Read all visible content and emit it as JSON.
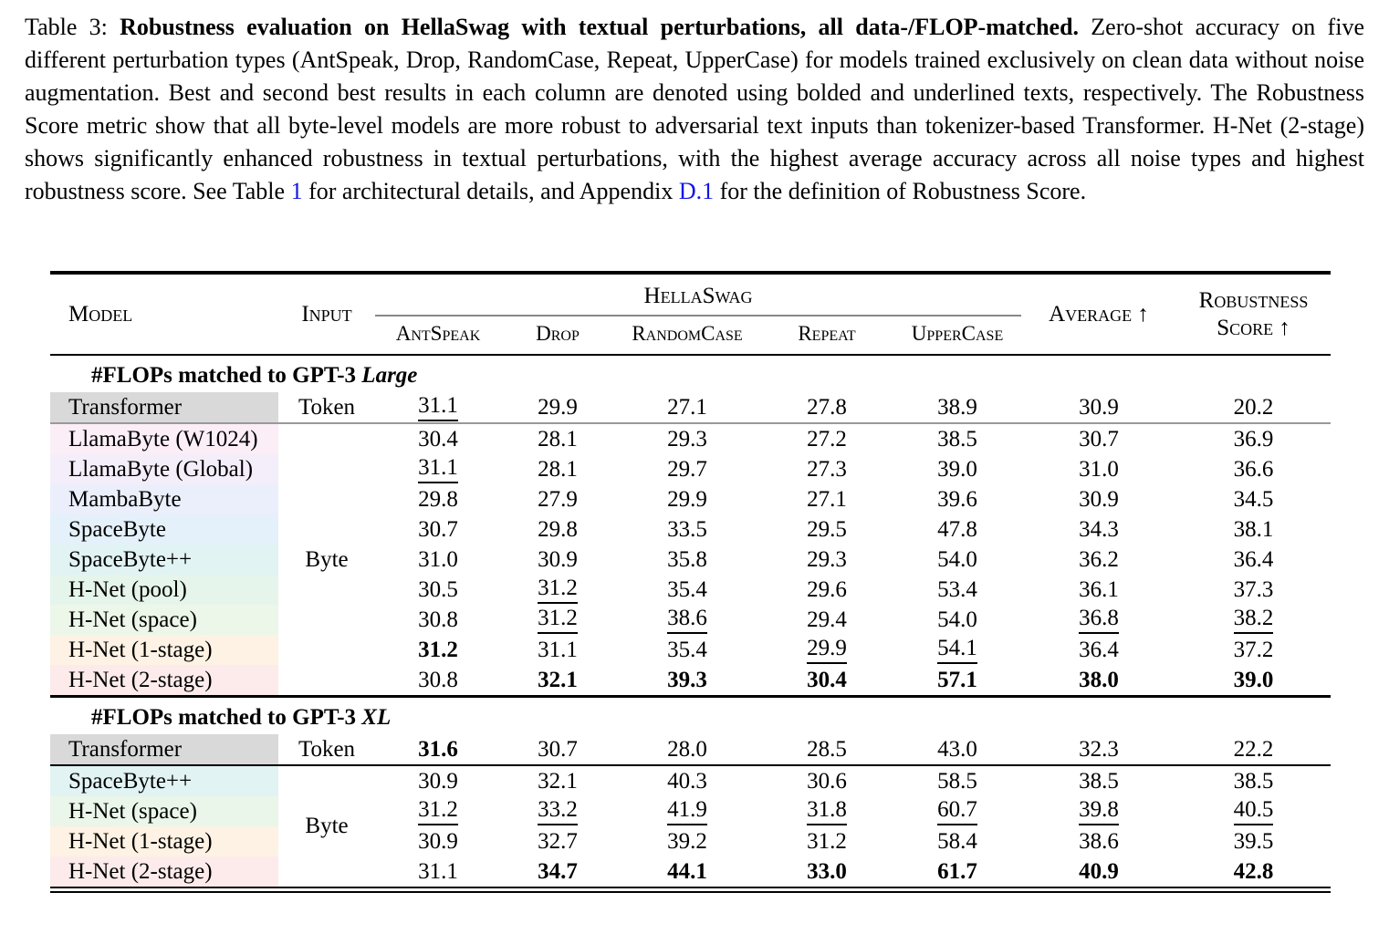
{
  "caption": {
    "prefix": "Table 3: ",
    "bold": "Robustness evaluation on HellaSwag with textual perturbations, all data-/FLOP-matched.",
    "body1": " Zero-shot accuracy on five different perturbation types (AntSpeak, Drop, RandomCase, Repeat, UpperCase) for models trained exclusively on clean data without noise augmentation. Best and second best results in each column are denoted using bolded and underlined texts, respectively. The Robustness Score metric show that all byte-level models are more robust to adversarial text inputs than tokenizer-based Transformer. H-Net (2-stage) shows significantly enhanced robustness in textual perturbations, with the highest average accuracy across all noise types and highest robustness score. See Table ",
    "link1": "1",
    "body2": " for architectural details, and Appendix ",
    "link2": "D.1",
    "body3": " for the definition of Robustness Score.",
    "link_color": "#1414e6"
  },
  "table": {
    "headers": {
      "model": "Model",
      "input": "Input",
      "group": "HellaSwag",
      "perturbations": [
        "AntSpeak",
        "Drop",
        "RandomCase",
        "Repeat",
        "UpperCase"
      ],
      "average": "Average ↑",
      "robustness_line1": "Robustness",
      "robustness_line2": "Score ↑"
    },
    "sections": [
      {
        "title": "#FLOPs matched to GPT-3 ",
        "title_italic": "Large",
        "rows": [
          {
            "model": "Transformer",
            "color": "#d9d9d9",
            "input": "Token",
            "input_span": 1,
            "values": [
              "31.1",
              "29.9",
              "27.1",
              "27.8",
              "38.9",
              "30.9",
              "20.2"
            ],
            "styles": [
              "u",
              "",
              "",
              "",
              "",
              "",
              ""
            ],
            "rule_after": "gray"
          },
          {
            "model": "LlamaByte (W1024)",
            "color": "#fbeef7",
            "input": "Byte",
            "input_span": 9,
            "values": [
              "30.4",
              "28.1",
              "29.3",
              "27.2",
              "38.5",
              "30.7",
              "36.9"
            ],
            "styles": [
              "",
              "",
              "",
              "",
              "",
              "",
              ""
            ]
          },
          {
            "model": "LlamaByte (Global)",
            "color": "#f4eefa",
            "values": [
              "31.1",
              "28.1",
              "29.7",
              "27.3",
              "39.0",
              "31.0",
              "36.6"
            ],
            "styles": [
              "u",
              "",
              "",
              "",
              "",
              "",
              ""
            ]
          },
          {
            "model": "MambaByte",
            "color": "#eaeffb",
            "values": [
              "29.8",
              "27.9",
              "29.9",
              "27.1",
              "39.6",
              "30.9",
              "34.5"
            ],
            "styles": [
              "",
              "",
              "",
              "",
              "",
              "",
              ""
            ]
          },
          {
            "model": "SpaceByte",
            "color": "#e5f1fa",
            "values": [
              "30.7",
              "29.8",
              "33.5",
              "29.5",
              "47.8",
              "34.3",
              "38.1"
            ],
            "styles": [
              "",
              "",
              "",
              "",
              "",
              "",
              ""
            ]
          },
          {
            "model": "SpaceByte++",
            "color": "#e1f3f3",
            "values": [
              "31.0",
              "30.9",
              "35.8",
              "29.3",
              "54.0",
              "36.2",
              "36.4"
            ],
            "styles": [
              "",
              "",
              "",
              "",
              "",
              "",
              ""
            ]
          },
          {
            "model": "H-Net (pool)",
            "color": "#e6f5eb",
            "values": [
              "30.5",
              "31.2",
              "35.4",
              "29.6",
              "53.4",
              "36.1",
              "37.3"
            ],
            "styles": [
              "",
              "u",
              "",
              "",
              "",
              "",
              ""
            ]
          },
          {
            "model": "H-Net (space)",
            "color": "#ecf7e9",
            "values": [
              "30.8",
              "31.2",
              "38.6",
              "29.4",
              "54.0",
              "36.8",
              "38.2"
            ],
            "styles": [
              "",
              "u",
              "u",
              "",
              "",
              "u",
              "u"
            ]
          },
          {
            "model": "H-Net (1-stage)",
            "color": "#fdf2e3",
            "values": [
              "31.2",
              "31.1",
              "35.4",
              "29.9",
              "54.1",
              "36.4",
              "37.2"
            ],
            "styles": [
              "b",
              "",
              "",
              "u",
              "u",
              "",
              ""
            ]
          },
          {
            "model": "H-Net (2-stage)",
            "color": "#fdebeb",
            "values": [
              "30.8",
              "32.1",
              "39.3",
              "30.4",
              "57.1",
              "38.0",
              "39.0"
            ],
            "styles": [
              "",
              "b",
              "b",
              "b",
              "b",
              "b",
              "b"
            ],
            "rule_after": "black3"
          }
        ]
      },
      {
        "title": "#FLOPs matched to GPT-3 ",
        "title_italic": "XL",
        "rows": [
          {
            "model": "Transformer",
            "color": "#d9d9d9",
            "input": "Token",
            "input_span": 1,
            "values": [
              "31.6",
              "30.7",
              "28.0",
              "28.5",
              "43.0",
              "32.3",
              "22.2"
            ],
            "styles": [
              "b",
              "",
              "",
              "",
              "",
              "",
              ""
            ],
            "rule_after": "black2"
          },
          {
            "model": "SpaceByte++",
            "color": "#e1f3f3",
            "input": "Byte",
            "input_span": 4,
            "values": [
              "30.9",
              "32.1",
              "40.3",
              "30.6",
              "58.5",
              "38.5",
              "38.5"
            ],
            "styles": [
              "",
              "",
              "",
              "",
              "",
              "",
              ""
            ]
          },
          {
            "model": "H-Net (space)",
            "color": "#eaf6e9",
            "values": [
              "31.2",
              "33.2",
              "41.9",
              "31.8",
              "60.7",
              "39.8",
              "40.5"
            ],
            "styles": [
              "u",
              "u",
              "u",
              "u",
              "u",
              "u",
              "u"
            ]
          },
          {
            "model": "H-Net (1-stage)",
            "color": "#fdf2e3",
            "values": [
              "30.9",
              "32.7",
              "39.2",
              "31.2",
              "58.4",
              "38.6",
              "39.5"
            ],
            "styles": [
              "",
              "",
              "",
              "",
              "",
              "",
              ""
            ]
          },
          {
            "model": "H-Net (2-stage)",
            "color": "#fdebeb",
            "values": [
              "31.1",
              "34.7",
              "44.1",
              "33.0",
              "61.7",
              "40.9",
              "42.8"
            ],
            "styles": [
              "",
              "b",
              "b",
              "b",
              "b",
              "b",
              "b"
            ],
            "rule_after": "double"
          }
        ]
      }
    ]
  }
}
